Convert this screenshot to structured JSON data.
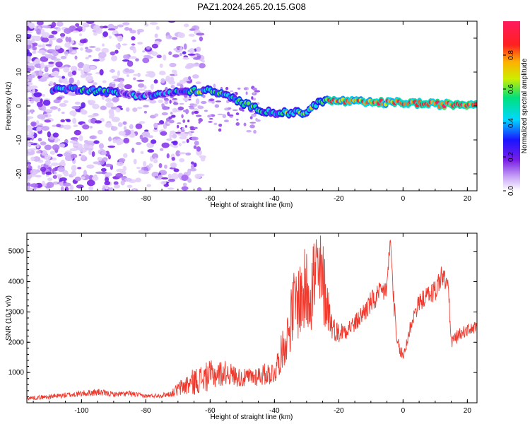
{
  "title": "PAZ1.2024.265.20.15.G08",
  "colors": {
    "snr_line": "#f03a2e",
    "spectrogram_palette": [
      "#ffffff",
      "#e6d6fb",
      "#b98cf3",
      "#7a1fe6",
      "#1a14ff",
      "#00d8ff",
      "#00e07a",
      "#ccee00",
      "#ffb000",
      "#ff2020",
      "#ff1a5e"
    ]
  },
  "chart_data": [
    {
      "type": "heatmap",
      "title": "PAZ1.2024.265.20.15.G08",
      "xlabel": "Height of straight line (km)",
      "ylabel": "Frequency (Hz)",
      "xlim": [
        -117,
        23
      ],
      "ylim": [
        -25,
        25
      ],
      "x_ticks": [
        -100,
        -80,
        -60,
        -40,
        -20,
        0,
        20
      ],
      "y_ticks": [
        -20,
        -10,
        0,
        10,
        20
      ],
      "grid": false,
      "colorbar": {
        "label": "Normalized spectral amplitude",
        "range": [
          0,
          1
        ],
        "ticks": [
          "0.0",
          "0.2",
          "0.4",
          "0.6",
          "0.8"
        ]
      },
      "ridge": {
        "description_points_x": [
          -107,
          -100,
          -95,
          -90,
          -85,
          -80,
          -75,
          -70,
          -65,
          -60,
          -55,
          -50,
          -45,
          -40,
          -35,
          -30,
          -26,
          -20,
          -10,
          0,
          10,
          22
        ],
        "frequency_hz": [
          5,
          5,
          4.5,
          4,
          3.5,
          3,
          3.5,
          4,
          4.5,
          4.5,
          3,
          1,
          -1,
          -2,
          -2,
          -2,
          1.5,
          1.5,
          1,
          1,
          0.5,
          0.5
        ],
        "amplitude": [
          0.35,
          0.4,
          0.45,
          0.35,
          0.3,
          0.35,
          0.3,
          0.4,
          0.5,
          0.55,
          0.4,
          0.5,
          0.45,
          0.5,
          0.55,
          0.5,
          0.65,
          0.8,
          0.85,
          0.85,
          0.9,
          0.9
        ]
      }
    },
    {
      "type": "line",
      "xlabel": "Height of straight line (km)",
      "ylabel": "SNR (10 * v/v)",
      "xlim": [
        -117,
        23
      ],
      "ylim": [
        0,
        5600
      ],
      "x_ticks": [
        -100,
        -80,
        -60,
        -40,
        -20,
        0,
        20
      ],
      "y_ticks": [
        1000,
        2000,
        3000,
        4000,
        5000
      ],
      "grid": false,
      "series": [
        {
          "envelope_x": [
            -117,
            -110,
            -100,
            -95,
            -90,
            -85,
            -80,
            -75,
            -72,
            -70,
            -65,
            -60,
            -55,
            -50,
            -45,
            -40,
            -36,
            -34,
            -30,
            -27,
            -25,
            -22,
            -20,
            -15,
            -10,
            -8,
            -5,
            -4,
            -3,
            -2,
            0,
            3,
            5,
            8,
            10,
            12,
            14,
            15,
            18,
            20,
            23
          ],
          "envelope_y": [
            150,
            200,
            300,
            350,
            280,
            300,
            220,
            250,
            300,
            450,
            700,
            900,
            1000,
            800,
            900,
            1000,
            2200,
            3200,
            3700,
            4200,
            4000,
            2500,
            2300,
            2600,
            3300,
            3500,
            3800,
            5400,
            3600,
            2000,
            1500,
            2800,
            3300,
            3600,
            3700,
            4200,
            3900,
            2000,
            2300,
            2400,
            2500
          ],
          "noise_amplitude": [
            60,
            80,
            100,
            120,
            80,
            100,
            60,
            80,
            100,
            250,
            450,
            500,
            400,
            300,
            350,
            400,
            800,
            1200,
            1500,
            1800,
            1500,
            400,
            350,
            300,
            400,
            400,
            400,
            300,
            400,
            250,
            250,
            300,
            300,
            300,
            400,
            400,
            350,
            250,
            200,
            200,
            200
          ]
        }
      ]
    }
  ]
}
